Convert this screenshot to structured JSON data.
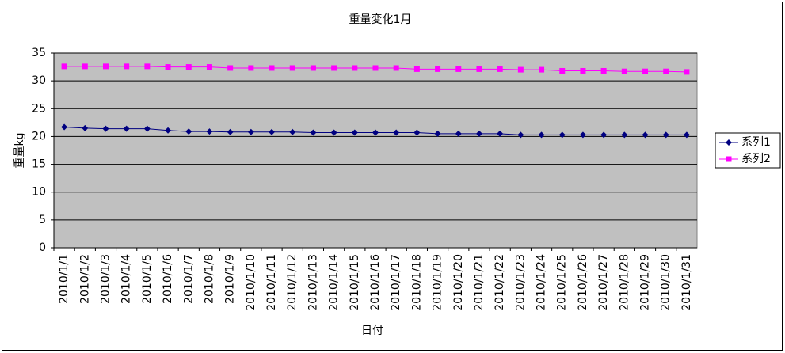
{
  "chart_data": {
    "type": "line",
    "title": "重量変化1月",
    "x_label": "日付",
    "y_label": "重量kg",
    "categories": [
      "2010/1/1",
      "2010/1/2",
      "2010/1/3",
      "2010/1/4",
      "2010/1/5",
      "2010/1/6",
      "2010/1/7",
      "2010/1/8",
      "2010/1/9",
      "2010/1/10",
      "2010/1/11",
      "2010/1/12",
      "2010/1/13",
      "2010/1/14",
      "2010/1/15",
      "2010/1/16",
      "2010/1/17",
      "2010/1/18",
      "2010/1/19",
      "2010/1/20",
      "2010/1/21",
      "2010/1/22",
      "2010/1/23",
      "2010/1/24",
      "2010/1/25",
      "2010/1/26",
      "2010/1/27",
      "2010/1/28",
      "2010/1/29",
      "2010/1/30",
      "2010/1/31"
    ],
    "series": [
      {
        "name": "系列1",
        "color": "#000080",
        "marker": "diamond",
        "values": [
          21.7,
          21.5,
          21.4,
          21.4,
          21.4,
          21.1,
          20.9,
          20.9,
          20.8,
          20.8,
          20.8,
          20.8,
          20.7,
          20.7,
          20.7,
          20.7,
          20.7,
          20.7,
          20.5,
          20.5,
          20.5,
          20.5,
          20.3,
          20.3,
          20.3,
          20.3,
          20.3,
          20.3,
          20.3,
          20.3,
          20.3
        ]
      },
      {
        "name": "系列2",
        "color": "#ff00ff",
        "marker": "square",
        "values": [
          32.6,
          32.6,
          32.6,
          32.6,
          32.6,
          32.5,
          32.5,
          32.5,
          32.3,
          32.3,
          32.3,
          32.3,
          32.3,
          32.3,
          32.3,
          32.3,
          32.3,
          32.1,
          32.1,
          32.1,
          32.1,
          32.1,
          32.0,
          32.0,
          31.8,
          31.8,
          31.8,
          31.7,
          31.7,
          31.7,
          31.6
        ]
      }
    ],
    "ylim": [
      0,
      35
    ],
    "yticks": [
      0,
      5,
      10,
      15,
      20,
      25,
      30,
      35
    ],
    "grid": true,
    "legend": "right",
    "plot_background": "#c0c0c0"
  }
}
